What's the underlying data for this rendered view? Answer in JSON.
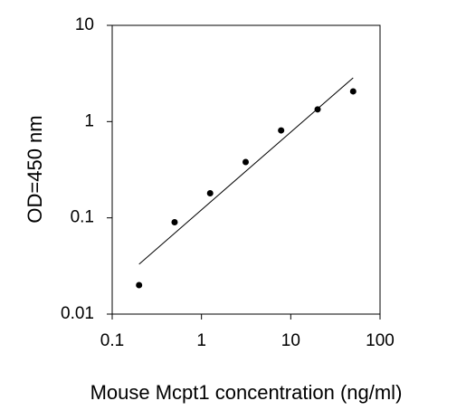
{
  "chart_data": {
    "type": "scatter",
    "x_label": "Mouse Mcpt1 concentration (ng/ml)",
    "y_label": "OD=450 nm",
    "x": [
      0.2,
      0.5,
      1.25,
      3.125,
      7.8,
      20,
      50
    ],
    "values": [
      0.02,
      0.09,
      0.18,
      0.38,
      0.81,
      1.34,
      2.06
    ],
    "color": "#000000",
    "fit": {
      "x": [
        0.2,
        50
      ],
      "values": [
        0.033,
        2.85
      ]
    },
    "x_log": true,
    "y_log": true,
    "xlim": [
      0.1,
      100
    ],
    "xticks": [
      0.1,
      1,
      10,
      100
    ],
    "ylim": [
      0.01,
      10
    ],
    "yticks": [
      0.01,
      0.1,
      1,
      10
    ]
  }
}
